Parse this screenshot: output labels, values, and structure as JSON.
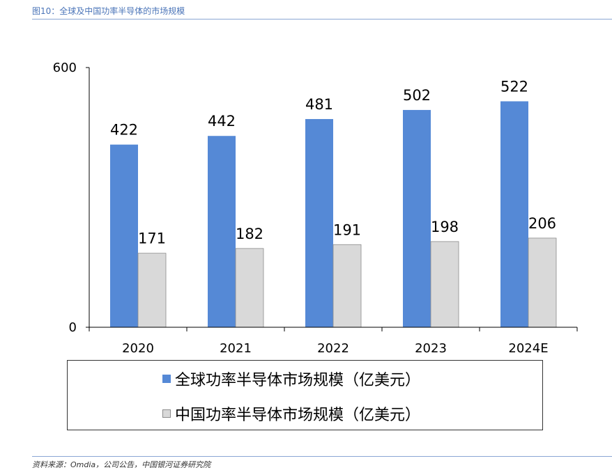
{
  "header": {
    "title": "图10：全球及中国功率半导体的市场规模"
  },
  "footer": {
    "source": "资料来源：Omdia，公司公告，中国银河证券研究院"
  },
  "colors": {
    "global": "#5589d6",
    "china": "#d9d9d9",
    "china_border": "#8c8c8c",
    "axis": "#000000"
  },
  "chart_data": {
    "type": "bar",
    "categories": [
      "2020",
      "2021",
      "2022",
      "2023",
      "2024E"
    ],
    "series": [
      {
        "name": "全球功率半导体市场规模（亿美元）",
        "values": [
          422,
          442,
          481,
          502,
          522
        ]
      },
      {
        "name": "中国功率半导体市场规模（亿美元）",
        "values": [
          171,
          182,
          191,
          198,
          206
        ]
      }
    ],
    "yticks": [
      "0",
      "600"
    ],
    "ylim": [
      0,
      600
    ],
    "legend_position": "bottom",
    "grid": false
  }
}
